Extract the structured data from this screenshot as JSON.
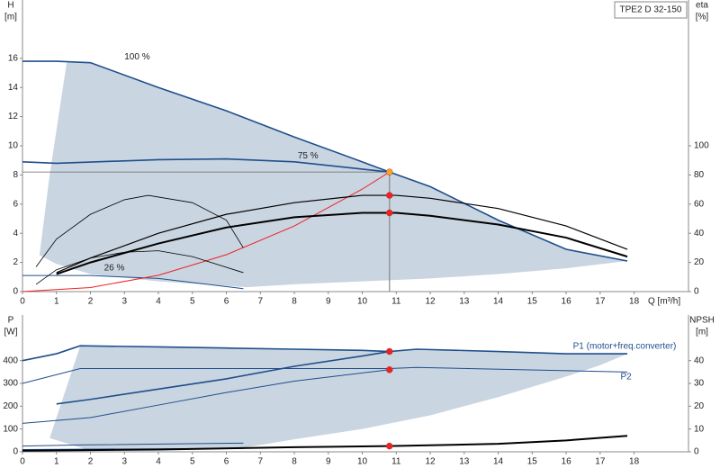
{
  "title": "TPE2 D 32-150",
  "chart_data": [
    {
      "type": "line",
      "ylabel": "H",
      "yunit": "[m]",
      "y2label": "eta",
      "y2unit": "[%]",
      "xlabel": "Q [m³/h]",
      "xlim": [
        0,
        19.6
      ],
      "xticks": [
        0,
        1,
        2,
        3,
        4,
        5,
        6,
        7,
        8,
        9,
        10,
        11,
        12,
        13,
        14,
        15,
        16,
        17,
        18
      ],
      "ylim": [
        0,
        20
      ],
      "yticks": [
        0,
        2,
        4,
        6,
        8,
        10,
        12,
        14,
        16
      ],
      "y2lim": [
        0,
        200
      ],
      "y2ticks": [
        0,
        20,
        40,
        60,
        80,
        100
      ],
      "region": {
        "color": "#c9d5e1",
        "x": [
          1.3,
          2,
          4,
          6,
          8,
          10,
          10.8,
          12,
          14,
          16,
          17.8,
          16,
          14,
          12,
          10,
          8,
          6.6,
          4,
          2,
          1,
          0.5,
          0.8
        ],
        "values": [
          15.7,
          15.7,
          14.0,
          12.4,
          10.6,
          8.9,
          8.2,
          7.2,
          4.9,
          2.9,
          2.1,
          1.6,
          1.2,
          0.9,
          0.7,
          0.5,
          0.3,
          0.7,
          1.2,
          1.9,
          2.5,
          8
        ]
      },
      "series": [
        {
          "color": "#1f4e8c",
          "width": 1.6,
          "x": [
            0,
            1,
            2,
            4,
            6,
            8,
            10,
            10.8,
            12,
            14,
            16,
            17.8
          ],
          "values": [
            15.8,
            15.8,
            15.7,
            14.0,
            12.4,
            10.6,
            8.9,
            8.2,
            7.2,
            4.9,
            2.9,
            2.1
          ]
        },
        {
          "color": "#1f4e8c",
          "width": 1.6,
          "x": [
            0,
            1,
            4,
            6,
            8,
            10,
            10.8
          ],
          "values": [
            8.9,
            8.8,
            9.05,
            9.1,
            8.9,
            8.4,
            8.2
          ]
        },
        {
          "color": "#1f4e8c",
          "width": 1,
          "x": [
            0,
            2,
            4,
            6.5
          ],
          "values": [
            1.1,
            1.1,
            0.9,
            0.2
          ]
        },
        {
          "color": "#ee2222",
          "width": 1,
          "x": [
            0,
            2,
            4,
            6,
            8,
            10,
            10.8
          ],
          "values": [
            0,
            0.28,
            1.12,
            2.53,
            4.5,
            7.03,
            8.2
          ]
        },
        {
          "color": "#000000",
          "width": 2,
          "axis": "y2",
          "x": [
            1,
            2,
            4,
            6,
            8,
            10,
            11,
            12,
            14,
            16,
            17.8
          ],
          "values": [
            12,
            20,
            33,
            44,
            51,
            54,
            54,
            52,
            46,
            37,
            24
          ]
        },
        {
          "color": "#000000",
          "width": 1.2,
          "axis": "y2",
          "x": [
            1,
            2,
            4,
            6,
            8,
            10,
            11,
            12,
            14,
            16,
            17.8
          ],
          "values": [
            13,
            23,
            40,
            53,
            61,
            66,
            66,
            64,
            57,
            45,
            29
          ]
        },
        {
          "color": "#000000",
          "width": 0.8,
          "axis": "y2",
          "x": [
            0.4,
            1,
            2,
            3,
            3.7,
            5,
            6,
            6.5
          ],
          "values": [
            17,
            36,
            53,
            63,
            66,
            61,
            49,
            30
          ]
        },
        {
          "color": "#000000",
          "width": 0.8,
          "axis": "y2",
          "x": [
            0.4,
            1,
            2,
            3,
            4,
            5,
            6.5
          ],
          "values": [
            5,
            15,
            23,
            27,
            28,
            24,
            13
          ]
        }
      ],
      "points": [
        {
          "x": 10.8,
          "y": 8.2,
          "color": "#f5a623"
        },
        {
          "x": 10.8,
          "y": 66,
          "axis": "y2",
          "color": "#ee2222"
        },
        {
          "x": 10.8,
          "y": 54,
          "axis": "y2",
          "color": "#ee2222"
        }
      ],
      "annotations": [
        {
          "text": "100 %",
          "x": 3.0,
          "y": 16.1
        },
        {
          "text": "75 %",
          "x": 8.1,
          "y": 9.3
        },
        {
          "text": "26 %",
          "x": 2.4,
          "y": 1.6
        }
      ]
    },
    {
      "type": "line",
      "ylabel": "P",
      "yunit": "[W]",
      "y2label": "NPSH",
      "y2unit": "[m]",
      "xlim": [
        0,
        19.6
      ],
      "xticks": [
        0,
        1,
        2,
        3,
        4,
        5,
        6,
        7,
        8,
        9,
        10,
        11,
        12,
        13,
        14,
        15,
        16,
        17,
        18
      ],
      "ylim": [
        0,
        600
      ],
      "yticks": [
        0,
        100,
        200,
        300,
        400
      ],
      "y2lim": [
        0,
        60
      ],
      "y2ticks": [
        0,
        10,
        20,
        30,
        40
      ],
      "region": {
        "color": "#c9d5e1",
        "x": [
          1.7,
          4,
          6,
          8,
          10,
          10.8,
          11.6,
          14,
          16,
          17.8,
          17,
          16,
          14,
          12,
          10,
          8,
          6.6,
          4,
          2,
          0.8
        ],
        "values": [
          465,
          460,
          455,
          450,
          445,
          440,
          450,
          440,
          430,
          430,
          380,
          330,
          240,
          160,
          100,
          55,
          20,
          10,
          5,
          60
        ]
      },
      "series": [
        {
          "color": "#1f4e8c",
          "width": 1.6,
          "x": [
            0,
            1,
            1.7,
            4,
            6,
            8,
            10,
            10.8,
            11.6,
            14,
            16,
            17.8
          ],
          "values": [
            400,
            430,
            465,
            460,
            455,
            450,
            445,
            440,
            450,
            440,
            430,
            430
          ]
        },
        {
          "color": "#1f4e8c",
          "width": 1.6,
          "x": [
            1,
            2,
            4,
            6,
            8,
            10,
            10.8
          ],
          "values": [
            210,
            230,
            275,
            320,
            375,
            420,
            440
          ]
        },
        {
          "color": "#1f4e8c",
          "width": 1,
          "x": [
            0,
            1.7,
            10.8,
            11.6,
            17.8
          ],
          "values": [
            300,
            365,
            365,
            370,
            350
          ]
        },
        {
          "color": "#1f4e8c",
          "width": 1,
          "x": [
            0,
            2,
            4,
            6,
            8,
            10.8
          ],
          "values": [
            125,
            150,
            205,
            260,
            310,
            360
          ]
        },
        {
          "color": "#1f4e8c",
          "width": 1,
          "x": [
            0,
            1.7,
            6.5
          ],
          "values": [
            25,
            30,
            38
          ]
        },
        {
          "color": "#1f4e8c",
          "width": 1,
          "x": [
            0,
            6.5
          ],
          "values": [
            10,
            15
          ]
        },
        {
          "color": "#000000",
          "width": 2,
          "axis": "y2",
          "x": [
            0,
            4,
            8,
            10.8,
            14,
            16,
            17.8
          ],
          "values": [
            0.5,
            1,
            2,
            2.5,
            3.5,
            5,
            7
          ]
        }
      ],
      "points": [
        {
          "x": 10.8,
          "y": 440,
          "color": "#ee2222"
        },
        {
          "x": 10.8,
          "y": 360,
          "color": "#ee2222"
        },
        {
          "x": 10.8,
          "y": 2.5,
          "axis": "y2",
          "color": "#ee2222"
        }
      ],
      "annotations": [
        {
          "text": "P1 (motor+freq.converter)",
          "x": 16.2,
          "y": 462,
          "color": "#1f4e8c"
        },
        {
          "text": "P2",
          "x": 17.6,
          "y": 328,
          "color": "#1f4e8c"
        }
      ]
    }
  ]
}
